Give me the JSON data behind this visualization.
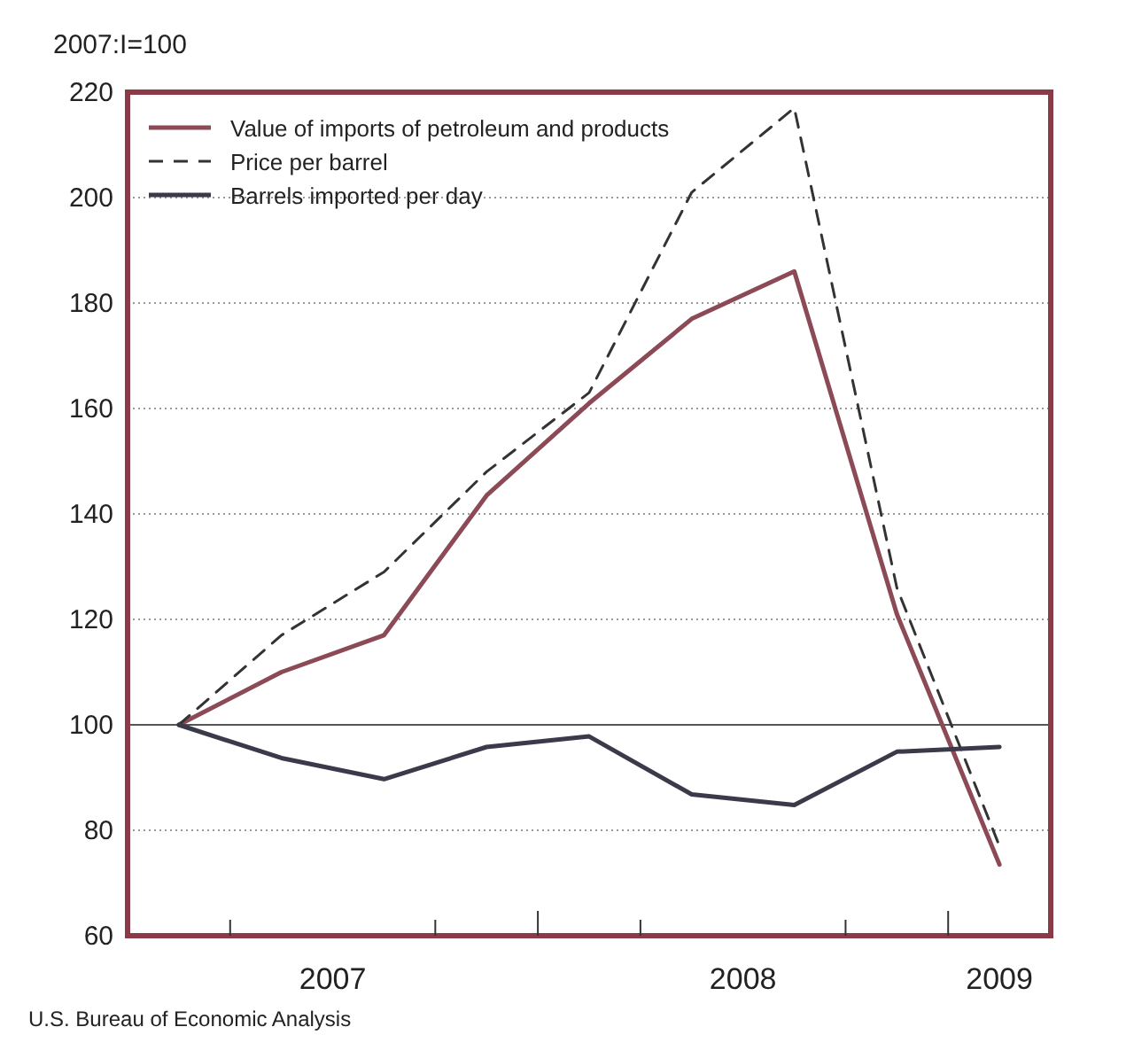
{
  "chart_data": {
    "type": "line",
    "ylabel": "2007:I=100",
    "annotations": [
      "U.S. Bureau of Economic Analysis"
    ],
    "x": [
      2007.125,
      2007.375,
      2007.625,
      2007.875,
      2008.125,
      2008.375,
      2008.625,
      2008.875,
      2009.125
    ],
    "xlim": [
      2007,
      2009.25
    ],
    "xticks": [
      {
        "value": 2007.25,
        "label": null
      },
      {
        "value": 2007.5,
        "label": "2007"
      },
      {
        "value": 2007.75,
        "label": null
      },
      {
        "value": 2008,
        "label": null
      },
      {
        "value": 2008.25,
        "label": null
      },
      {
        "value": 2008.5,
        "label": "2008"
      },
      {
        "value": 2008.75,
        "label": null
      },
      {
        "value": 2009,
        "label": null
      },
      {
        "value": 2009.125,
        "label": "2009"
      }
    ],
    "ylim": [
      60,
      220
    ],
    "yticks": [
      60,
      80,
      100,
      120,
      140,
      160,
      180,
      200,
      220
    ],
    "grid": "y",
    "legend": "top left",
    "tick_labels": "xy",
    "ref_lines": [
      {
        "axis": "y",
        "value": 100,
        "color": "#555555"
      }
    ],
    "series": [
      {
        "name": "Value of imports of petroleum and products",
        "color": "#8b4a55",
        "line_style": "solid",
        "values": [
          100,
          110,
          117,
          143.5,
          161,
          177,
          186,
          121,
          73.5
        ]
      },
      {
        "name": "Price per barrel",
        "color": "#333333",
        "line_style": "dashed",
        "values": [
          100,
          117,
          129,
          148,
          163,
          201,
          217,
          126,
          77
        ]
      },
      {
        "name": "Barrels imported per day",
        "color": "#3a3a4a",
        "line_style": "solid",
        "values": [
          100,
          93.7,
          89.7,
          95.8,
          97.8,
          86.8,
          84.8,
          94.9,
          95.8
        ]
      }
    ]
  }
}
